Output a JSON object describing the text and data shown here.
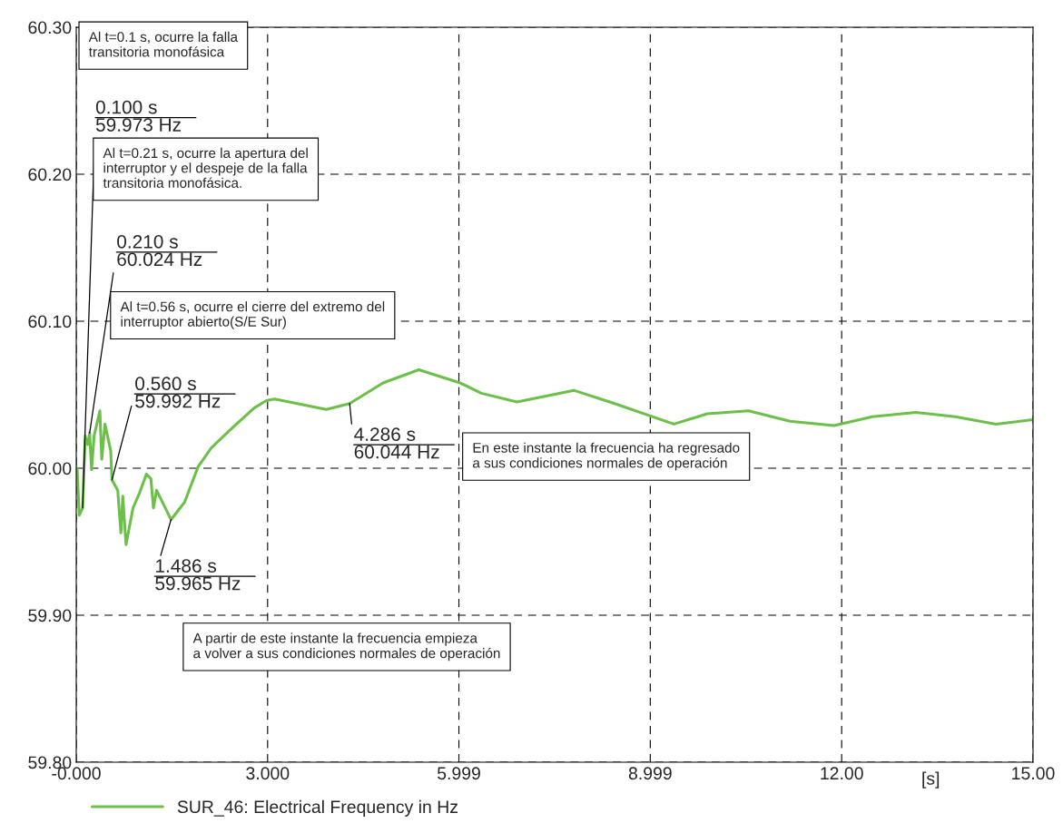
{
  "chart_data": {
    "type": "line",
    "xlabel": "[s]",
    "x": [
      0,
      0.014,
      0.047,
      0.1,
      0.14,
      0.18,
      0.21,
      0.24,
      0.28,
      0.37,
      0.4,
      0.45,
      0.54,
      0.56,
      0.65,
      0.7,
      0.73,
      0.78,
      0.89,
      0.99,
      1.1,
      1.17,
      1.21,
      1.26,
      1.486,
      1.7,
      1.91,
      2.12,
      2.46,
      2.79,
      2.98,
      3.11,
      3.92,
      4.286,
      4.81,
      5.37,
      6.02,
      6.35,
      6.91,
      7.8,
      8.44,
      9.37,
      9.89,
      10.54,
      11.19,
      11.88,
      12.48,
      13.16,
      13.78,
      14.42,
      15.0
    ],
    "series": [
      {
        "name": "SUR_46: Electrical Frequency in Hz",
        "color": "#6cc04a",
        "values": [
          60.0,
          60.0,
          59.968,
          59.973,
          60.022,
          60.016,
          60.024,
          59.999,
          60.022,
          60.039,
          60.006,
          60.03,
          60.012,
          59.992,
          59.985,
          59.956,
          59.981,
          59.948,
          59.973,
          59.983,
          59.996,
          59.993,
          59.973,
          59.985,
          59.965,
          59.977,
          60.001,
          60.014,
          60.028,
          60.041,
          60.046,
          60.047,
          60.04,
          60.044,
          60.058,
          60.067,
          60.058,
          60.051,
          60.045,
          60.053,
          60.044,
          60.03,
          60.037,
          60.039,
          60.032,
          60.029,
          60.035,
          60.038,
          60.035,
          60.03,
          60.033
        ]
      }
    ],
    "xlim": [
      0,
      15
    ],
    "xticks": [
      {
        "value": 0,
        "label": "-0.000"
      },
      {
        "value": 3,
        "label": "3.000"
      },
      5.999,
      8.999,
      {
        "value": 12,
        "label": "12.00"
      },
      {
        "value": 15,
        "label": "15.00"
      }
    ],
    "ylim": [
      59.8,
      60.3
    ],
    "yticks": [
      {
        "value": 59.8,
        "label": "59.80"
      },
      {
        "value": 59.9,
        "label": "59.90"
      },
      {
        "value": 60.0,
        "label": "60.00"
      },
      {
        "value": 60.1,
        "label": "60.10"
      },
      {
        "value": 60.2,
        "label": "60.20"
      },
      {
        "value": 60.3,
        "label": "60.30"
      }
    ],
    "grid": true,
    "legend": "bottom",
    "line_style": "solid",
    "marker": "none",
    "annotations": [
      "Al t=0.1 s, ocurre la falla\ntransitoria monofásica",
      {
        "text": "0.100 s\n59.973 Hz",
        "x": 0.1,
        "y": 59.973
      },
      "Al t=0.21 s, ocurre la apertura del\ninterruptor y el despeje de la falla\ntransitoria monofásica.",
      {
        "text": "0.210 s\n60.024 Hz",
        "x": 0.21,
        "y": 60.024
      },
      "Al t=0.56 s, ocurre el cierre del extremo del\ninterruptor abierto(S/E Sur)",
      {
        "text": "0.560 s\n59.992 Hz",
        "x": 0.56,
        "y": 59.992
      },
      {
        "text": "4.286 s\n60.044 Hz",
        "x": 4.286,
        "y": 60.044
      },
      "En este instante la frecuencia ha regresado\na sus condiciones normales de operación",
      {
        "text": "1.486 s\n59.965 Hz",
        "x": 1.486,
        "y": 59.965
      },
      "A partir de este instante la frecuencia empieza\na volver a sus condiciones normales de operación"
    ]
  }
}
